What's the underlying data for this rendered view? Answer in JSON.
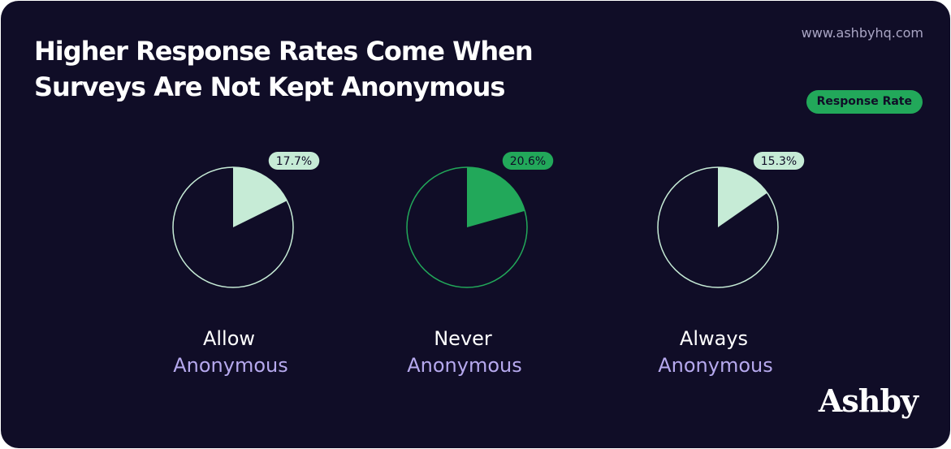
{
  "chart_data": {
    "type": "pie",
    "title": "Higher Response Rates Come When Surveys Are Not Kept Anonymous",
    "source": "www.ashbyhq.com",
    "brand": "Ashby",
    "legend": "Response Rate",
    "legend_color": "#22a85a",
    "categories": [
      "Allow",
      "Never",
      "Always"
    ],
    "sublabels": [
      "Anonymous",
      "Anonymous",
      "Anonymous"
    ],
    "values": [
      17.7,
      20.6,
      15.3
    ],
    "value_labels": [
      "17.7%",
      "20.6%",
      "15.3%"
    ],
    "colors": [
      "#c6ebd6",
      "#22a85a",
      "#c6ebd6"
    ]
  }
}
